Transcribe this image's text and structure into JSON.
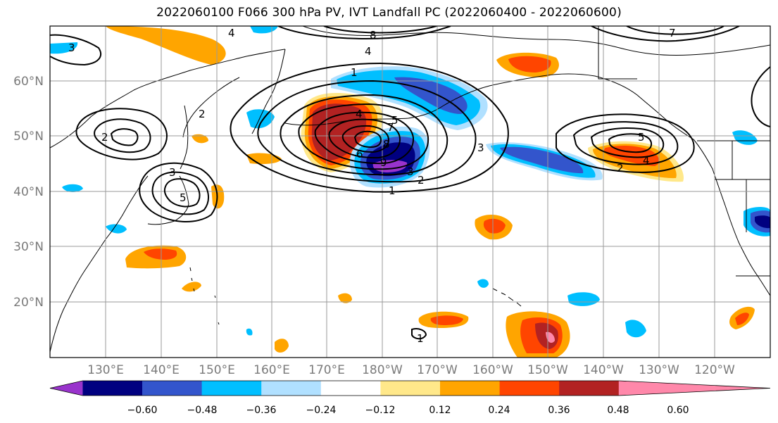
{
  "title": "2022060100 F066 300 hPa PV, IVT Landfall PC (2022060400 - 2022060600)",
  "map": {
    "lat_labels": [
      "20°N",
      "30°N",
      "40°N",
      "50°N",
      "60°N"
    ],
    "lon_labels": [
      "130°E",
      "140°E",
      "150°E",
      "160°E",
      "170°E",
      "180°W",
      "170°W",
      "160°W",
      "150°W",
      "140°W",
      "130°W",
      "120°W"
    ],
    "contour_labels": [
      "1",
      "2",
      "3",
      "4",
      "5",
      "6",
      "7",
      "8",
      "9",
      "2",
      "3",
      "5",
      "2",
      "3",
      "4",
      "5",
      "4",
      "3",
      "2",
      "1",
      "1",
      "4",
      "8",
      "7"
    ]
  },
  "colorbar": {
    "tick_labels": [
      "−0.60",
      "−0.48",
      "−0.36",
      "−0.24",
      "−0.12",
      "0.12",
      "0.24",
      "0.36",
      "0.48",
      "0.60"
    ],
    "colors": [
      "#9933cc",
      "#000080",
      "#3355cc",
      "#00bfff",
      "#b0e0ff",
      "#ffffff",
      "#ffe88a",
      "#ffa500",
      "#ff4500",
      "#b22222",
      "#ff88aa"
    ]
  }
}
